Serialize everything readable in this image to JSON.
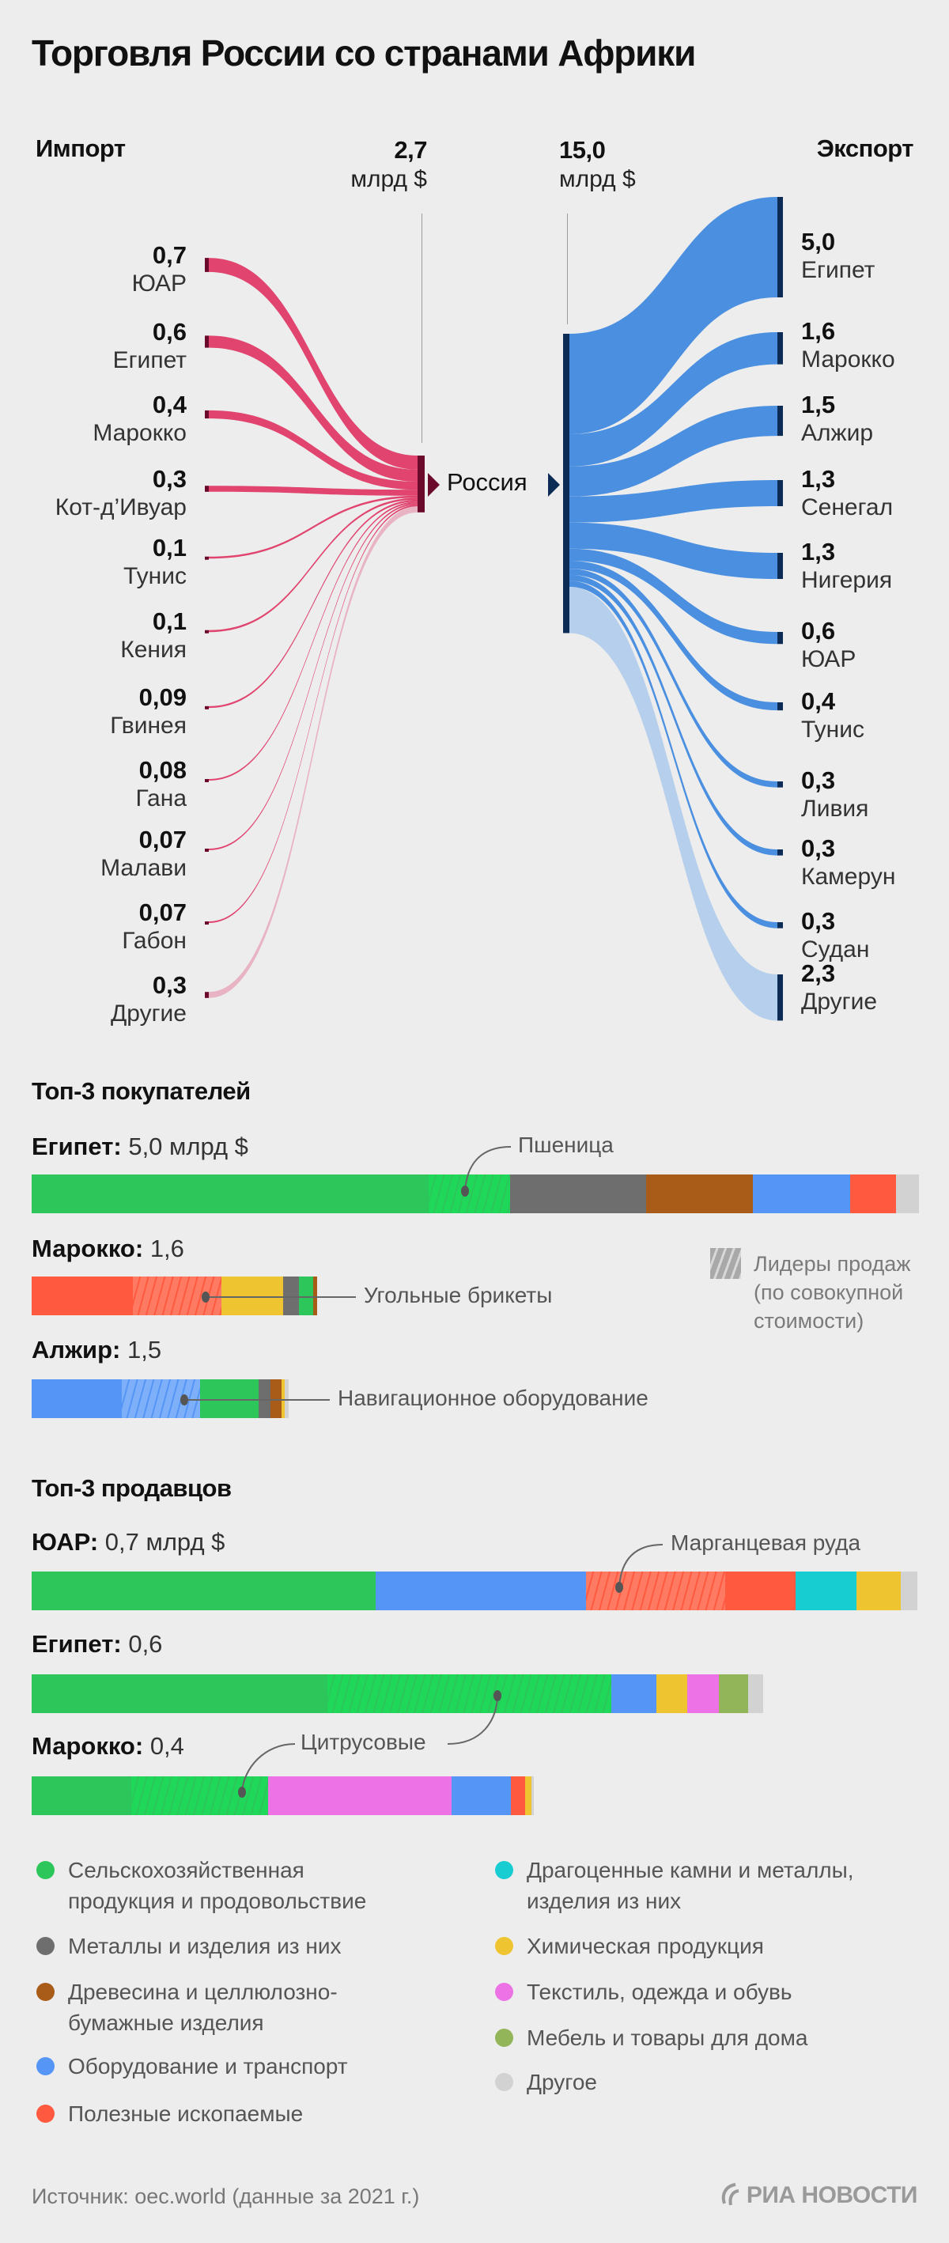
{
  "title": "Торговля России со странами Африки",
  "colors": {
    "background": "#ededed",
    "import_flow": "#e0446f",
    "import_other_flow": "#e8b3c3",
    "import_node": "#6b0a2a",
    "export_flow": "#4a8fe0",
    "export_other_flow": "#b5cfec",
    "export_node": "#0d2c55"
  },
  "chart_data": [
    {
      "type": "sankey",
      "title": "Торговля России со странами Африки",
      "unit": "млрд $",
      "center": "Россия",
      "import": {
        "label": "Импорт",
        "total": 2.7,
        "flows": [
          {
            "country": "ЮАР",
            "value": 0.7
          },
          {
            "country": "Египет",
            "value": 0.6
          },
          {
            "country": "Марокко",
            "value": 0.4
          },
          {
            "country": "Кот-д’Ивуар",
            "value": 0.3
          },
          {
            "country": "Тунис",
            "value": 0.1
          },
          {
            "country": "Кения",
            "value": 0.1
          },
          {
            "country": "Гвинея",
            "value": 0.09
          },
          {
            "country": "Гана",
            "value": 0.08
          },
          {
            "country": "Малави",
            "value": 0.07
          },
          {
            "country": "Габон",
            "value": 0.07
          },
          {
            "country": "Другие",
            "value": 0.3
          }
        ]
      },
      "export": {
        "label": "Экспорт",
        "total": 15.0,
        "flows": [
          {
            "country": "Египет",
            "value": 5.0
          },
          {
            "country": "Марокко",
            "value": 1.6
          },
          {
            "country": "Алжир",
            "value": 1.5
          },
          {
            "country": "Сенегал",
            "value": 1.3
          },
          {
            "country": "Нигерия",
            "value": 1.3
          },
          {
            "country": "ЮАР",
            "value": 0.6
          },
          {
            "country": "Тунис",
            "value": 0.4
          },
          {
            "country": "Ливия",
            "value": 0.3
          },
          {
            "country": "Камерун",
            "value": 0.3
          },
          {
            "country": "Судан",
            "value": 0.3
          },
          {
            "country": "Другие",
            "value": 2.3
          }
        ]
      }
    },
    {
      "type": "stacked-bar",
      "title": "Топ-3 покупателей",
      "unit": "млрд $",
      "rows": [
        {
          "country": "Египет",
          "total": 5.0,
          "segments": [
            {
              "cat": "agri",
              "value": 2.24
            },
            {
              "cat": "agri",
              "value": 0.46,
              "leader": true
            },
            {
              "cat": "metals",
              "value": 0.77
            },
            {
              "cat": "wood",
              "value": 0.6
            },
            {
              "cat": "equip",
              "value": 0.55
            },
            {
              "cat": "minerals",
              "value": 0.26
            },
            {
              "cat": "other",
              "value": 0.13
            }
          ]
        },
        {
          "country": "Марокко",
          "total": 1.6,
          "segments": [
            {
              "cat": "minerals",
              "value": 0.57
            },
            {
              "cat": "minerals",
              "value": 0.5,
              "leader": true
            },
            {
              "cat": "chem",
              "value": 0.35
            },
            {
              "cat": "metals",
              "value": 0.09
            },
            {
              "cat": "agri",
              "value": 0.08
            },
            {
              "cat": "wood",
              "value": 0.02
            }
          ]
        },
        {
          "country": "Алжир",
          "total": 1.5,
          "segments": [
            {
              "cat": "equip",
              "value": 0.51
            },
            {
              "cat": "equip",
              "value": 0.44,
              "leader": true
            },
            {
              "cat": "agri",
              "value": 0.33
            },
            {
              "cat": "metals",
              "value": 0.07
            },
            {
              "cat": "wood",
              "value": 0.06
            },
            {
              "cat": "chem",
              "value": 0.02
            },
            {
              "cat": "other",
              "value": 0.02
            }
          ]
        }
      ]
    },
    {
      "type": "stacked-bar",
      "title": "Топ-3 продавцов",
      "unit": "млрд $",
      "rows": [
        {
          "country": "ЮАР",
          "total": 0.7,
          "segments": [
            {
              "cat": "agri",
              "value": 0.272
            },
            {
              "cat": "equip",
              "value": 0.166
            },
            {
              "cat": "minerals",
              "value": 0.11,
              "leader": true
            },
            {
              "cat": "minerals",
              "value": 0.056
            },
            {
              "cat": "gems",
              "value": 0.048
            },
            {
              "cat": "chem",
              "value": 0.035
            },
            {
              "cat": "other",
              "value": 0.013
            }
          ]
        },
        {
          "country": "Египет",
          "total": 0.6,
          "segments": [
            {
              "cat": "agri",
              "value": 0.234
            },
            {
              "cat": "agri",
              "value": 0.224,
              "leader": true
            },
            {
              "cat": "equip",
              "value": 0.036
            },
            {
              "cat": "chem",
              "value": 0.024
            },
            {
              "cat": "textile",
              "value": 0.025
            },
            {
              "cat": "furniture",
              "value": 0.023
            },
            {
              "cat": "other",
              "value": 0.012
            }
          ]
        },
        {
          "country": "Марокко",
          "total": 0.4,
          "segments": [
            {
              "cat": "agri",
              "value": 0.079
            },
            {
              "cat": "agri",
              "value": 0.108,
              "leader": true
            },
            {
              "cat": "textile",
              "value": 0.145
            },
            {
              "cat": "equip",
              "value": 0.047
            },
            {
              "cat": "minerals",
              "value": 0.011
            },
            {
              "cat": "chem",
              "value": 0.005
            },
            {
              "cat": "other",
              "value": 0.002
            }
          ]
        }
      ]
    }
  ],
  "sankey": {
    "import_label": "Импорт",
    "import_total": "2,7",
    "import_unit": "млрд $",
    "export_label": "Экспорт",
    "export_total": "15,0",
    "export_unit": "млрд $",
    "center_label": "Россия",
    "imports": [
      {
        "value_label": "0,7",
        "country": "ЮАР"
      },
      {
        "value_label": "0,6",
        "country": "Египет"
      },
      {
        "value_label": "0,4",
        "country": "Марокко"
      },
      {
        "value_label": "0,3",
        "country": "Кот-д’Ивуар"
      },
      {
        "value_label": "0,1",
        "country": "Тунис"
      },
      {
        "value_label": "0,1",
        "country": "Кения"
      },
      {
        "value_label": "0,09",
        "country": "Гвинея"
      },
      {
        "value_label": "0,08",
        "country": "Гана"
      },
      {
        "value_label": "0,07",
        "country": "Малави"
      },
      {
        "value_label": "0,07",
        "country": "Габон"
      },
      {
        "value_label": "0,3",
        "country": "Другие"
      }
    ],
    "exports": [
      {
        "value_label": "5,0",
        "country": "Египет"
      },
      {
        "value_label": "1,6",
        "country": "Марокко"
      },
      {
        "value_label": "1,5",
        "country": "Алжир"
      },
      {
        "value_label": "1,3",
        "country": "Сенегал"
      },
      {
        "value_label": "1,3",
        "country": "Нигерия"
      },
      {
        "value_label": "0,6",
        "country": "ЮАР"
      },
      {
        "value_label": "0,4",
        "country": "Тунис"
      },
      {
        "value_label": "0,3",
        "country": "Ливия"
      },
      {
        "value_label": "0,3",
        "country": "Камерун"
      },
      {
        "value_label": "0,3",
        "country": "Судан"
      },
      {
        "value_label": "2,3",
        "country": "Другие"
      }
    ]
  },
  "buyers": {
    "heading": "Топ-3 покупателей",
    "rows": [
      {
        "country": "Египет:",
        "total": " 5,0 млрд $"
      },
      {
        "country": "Марокко:",
        "total": " 1,6"
      },
      {
        "country": "Алжир:",
        "total": " 1,5"
      }
    ],
    "annotations": {
      "egypt": "Пшеница",
      "morocco": "Угольные брикеты",
      "algeria": "Навигационное оборудование"
    }
  },
  "sellers": {
    "heading": "Топ-3 продавцов",
    "rows": [
      {
        "country": "ЮАР:",
        "total": " 0,7 млрд $"
      },
      {
        "country": "Египет:",
        "total": " 0,6"
      },
      {
        "country": "Марокко:",
        "total": " 0,4"
      }
    ],
    "annotations": {
      "south_africa": "Марганцевая руда",
      "citrus": "Цитрусовые"
    }
  },
  "leaders_legend": "Лидеры продаж\n(по совокупной\nстоимости)",
  "categories": [
    {
      "key": "agri",
      "label": "Сельскохозяйственная\nпродукция и продовольствие",
      "color": "#2dc65a",
      "hatch": "#1fd85a"
    },
    {
      "key": "metals",
      "label": "Металлы и изделия из них",
      "color": "#6e6e6e"
    },
    {
      "key": "wood",
      "label": "Древесина и целлюлозно-\nбумажные изделия",
      "color": "#a85c18"
    },
    {
      "key": "equip",
      "label": "Оборудование и транспорт",
      "color": "#5595f5",
      "hatch": "#7db0f8"
    },
    {
      "key": "minerals",
      "label": "Полезные ископаемые",
      "color": "#ff5a40",
      "hatch": "#ff7a62"
    },
    {
      "key": "gems",
      "label": "Драгоценные камни и металлы,\nизделия из них",
      "color": "#18cdd2"
    },
    {
      "key": "chem",
      "label": "Химическая продукция",
      "color": "#eec431"
    },
    {
      "key": "textile",
      "label": "Текстиль, одежда и обувь",
      "color": "#ec72e6"
    },
    {
      "key": "furniture",
      "label": "Мебель и товары для дома",
      "color": "#93b55a"
    },
    {
      "key": "other",
      "label": "Другое",
      "color": "#d2d2d2"
    }
  ],
  "footer": {
    "source": "Источник: oec.world (данные за 2021 г.)",
    "logo": "РИА НОВОСТИ"
  }
}
